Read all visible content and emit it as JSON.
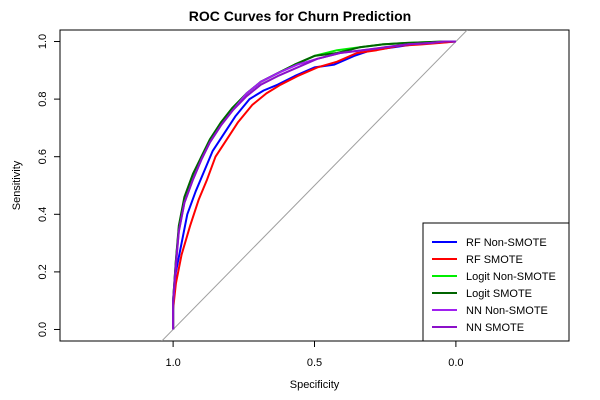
{
  "chart_data": {
    "type": "line",
    "title": "ROC Curves for Churn Prediction",
    "xlabel": "Specificity",
    "ylabel": "Sensitivity",
    "x_reversed": true,
    "xlim": [
      1.4,
      -0.4
    ],
    "ylim": [
      -0.04,
      1.04
    ],
    "x_ticks": [
      1.0,
      0.5,
      0.0
    ],
    "x_tick_labels": [
      "1.0",
      "0.5",
      "0.0"
    ],
    "y_ticks": [
      0.0,
      0.2,
      0.4,
      0.6,
      0.8,
      1.0
    ],
    "y_tick_labels": [
      "0.0",
      "0.2",
      "0.4",
      "0.6",
      "0.8",
      "1.0"
    ],
    "diagonal_reference": true,
    "grid": false,
    "legend_position": "bottom-right",
    "series": [
      {
        "name": "RF Non-SMOTE",
        "color": "#0000ff",
        "x": [
          1.0,
          1.0,
          0.99,
          0.97,
          0.95,
          0.92,
          0.89,
          0.86,
          0.82,
          0.78,
          0.73,
          0.68,
          0.63,
          0.57,
          0.5,
          0.43,
          0.36,
          0.3,
          0.22,
          0.15,
          0.08,
          0.0
        ],
        "y": [
          0.0,
          0.08,
          0.2,
          0.3,
          0.4,
          0.48,
          0.55,
          0.62,
          0.68,
          0.74,
          0.8,
          0.83,
          0.85,
          0.88,
          0.91,
          0.92,
          0.95,
          0.97,
          0.98,
          0.99,
          0.995,
          1.0
        ]
      },
      {
        "name": "RF SMOTE",
        "color": "#ff0000",
        "x": [
          1.0,
          1.0,
          0.99,
          0.97,
          0.94,
          0.91,
          0.88,
          0.85,
          0.81,
          0.77,
          0.72,
          0.67,
          0.62,
          0.56,
          0.49,
          0.42,
          0.35,
          0.28,
          0.2,
          0.12,
          0.06,
          0.0
        ],
        "y": [
          0.0,
          0.07,
          0.16,
          0.26,
          0.36,
          0.45,
          0.52,
          0.6,
          0.66,
          0.72,
          0.78,
          0.82,
          0.85,
          0.88,
          0.91,
          0.93,
          0.96,
          0.97,
          0.985,
          0.99,
          0.995,
          1.0
        ]
      },
      {
        "name": "Logit Non-SMOTE",
        "color": "#00ee00",
        "x": [
          1.0,
          1.0,
          0.99,
          0.98,
          0.96,
          0.93,
          0.9,
          0.87,
          0.83,
          0.79,
          0.74,
          0.69,
          0.63,
          0.57,
          0.5,
          0.42,
          0.34,
          0.26,
          0.18,
          0.1,
          0.04,
          0.0
        ],
        "y": [
          0.0,
          0.1,
          0.24,
          0.35,
          0.45,
          0.53,
          0.6,
          0.66,
          0.72,
          0.77,
          0.82,
          0.86,
          0.89,
          0.92,
          0.95,
          0.97,
          0.98,
          0.99,
          0.995,
          0.998,
          1.0,
          1.0
        ]
      },
      {
        "name": "Logit SMOTE",
        "color": "#006400",
        "x": [
          1.0,
          1.0,
          0.99,
          0.98,
          0.96,
          0.93,
          0.9,
          0.87,
          0.83,
          0.79,
          0.74,
          0.69,
          0.63,
          0.57,
          0.5,
          0.42,
          0.34,
          0.26,
          0.18,
          0.1,
          0.04,
          0.0
        ],
        "y": [
          0.0,
          0.1,
          0.24,
          0.36,
          0.46,
          0.54,
          0.6,
          0.66,
          0.72,
          0.77,
          0.82,
          0.86,
          0.89,
          0.92,
          0.95,
          0.96,
          0.98,
          0.99,
          0.995,
          0.998,
          1.0,
          1.0
        ]
      },
      {
        "name": "NN Non-SMOTE",
        "color": "#a020f0",
        "x": [
          1.0,
          1.0,
          0.99,
          0.98,
          0.96,
          0.93,
          0.9,
          0.87,
          0.83,
          0.79,
          0.74,
          0.69,
          0.63,
          0.56,
          0.49,
          0.41,
          0.33,
          0.25,
          0.17,
          0.09,
          0.04,
          0.0
        ],
        "y": [
          0.0,
          0.09,
          0.22,
          0.34,
          0.44,
          0.52,
          0.59,
          0.65,
          0.71,
          0.76,
          0.82,
          0.86,
          0.89,
          0.92,
          0.94,
          0.96,
          0.97,
          0.98,
          0.99,
          0.995,
          1.0,
          1.0
        ]
      },
      {
        "name": "NN SMOTE",
        "color": "#8b10c8",
        "x": [
          1.0,
          1.0,
          0.99,
          0.98,
          0.96,
          0.93,
          0.9,
          0.87,
          0.83,
          0.79,
          0.74,
          0.69,
          0.63,
          0.56,
          0.49,
          0.41,
          0.33,
          0.25,
          0.17,
          0.09,
          0.04,
          0.0
        ],
        "y": [
          0.0,
          0.1,
          0.23,
          0.34,
          0.44,
          0.52,
          0.59,
          0.65,
          0.71,
          0.76,
          0.81,
          0.85,
          0.88,
          0.91,
          0.94,
          0.96,
          0.97,
          0.98,
          0.99,
          0.995,
          1.0,
          1.0
        ]
      }
    ]
  }
}
